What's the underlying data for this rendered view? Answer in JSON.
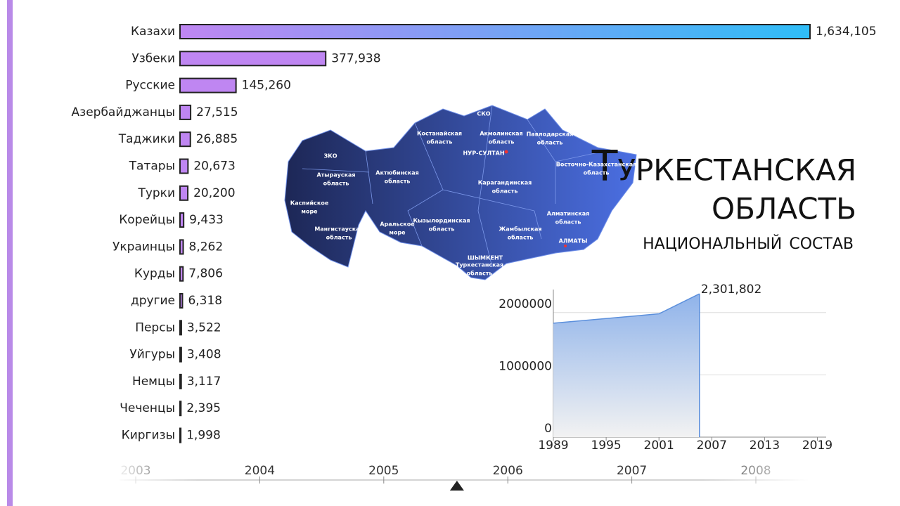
{
  "title_lines": [
    "Туркестанская",
    "область"
  ],
  "subtitle": "национальный состав",
  "chart_data": [
    {
      "type": "hbar",
      "categories": [
        "Казахи",
        "Узбеки",
        "Русские",
        "Азербайджанцы",
        "Таджики",
        "Татары",
        "Турки",
        "Корейцы",
        "Украинцы",
        "Курды",
        "другие",
        "Персы",
        "Уйгуры",
        "Немцы",
        "Чеченцы",
        "Киргизы"
      ],
      "values": [
        1634105,
        377938,
        145260,
        27515,
        26885,
        20673,
        20200,
        9433,
        8262,
        7806,
        6318,
        3522,
        3408,
        3117,
        2395,
        1998
      ],
      "value_labels": [
        "1,634,105",
        "377,938",
        "145,260",
        "27,515",
        "26,885",
        "20,673",
        "20,200",
        "9,433",
        "8,262",
        "7,806",
        "6,318",
        "3,522",
        "3,408",
        "3,117",
        "2,395",
        "1,998"
      ],
      "color": "#bf86f2",
      "gradient_color": "#2fbdf7"
    },
    {
      "type": "area",
      "x": [
        1989,
        2001,
        2005.6
      ],
      "values": [
        1830000,
        1980000,
        2301802
      ],
      "value_labels": [
        null,
        null,
        "2,301,802"
      ],
      "color": "#5b8fdc",
      "xlim": [
        1989,
        2020
      ],
      "xticks": [
        1989,
        1995,
        2001,
        2007,
        2013,
        2019
      ],
      "ylim": [
        0,
        2370000
      ],
      "yticks": [
        0,
        1000000,
        2000000
      ],
      "grid": true
    }
  ],
  "timeline": {
    "ticks": [
      2003,
      2004,
      2005,
      2006,
      2007,
      2008
    ],
    "current": 2005.59
  },
  "map": {
    "regions": [
      [
        "ЗКО"
      ],
      [
        "Атырауская",
        "область"
      ],
      [
        "Каспийское",
        "море"
      ],
      [
        "Мангистауская",
        "область"
      ],
      [
        "Актюбинская",
        "область"
      ],
      [
        "Костанайская",
        "область"
      ],
      [
        "СКО"
      ],
      [
        "Акмолинская",
        "область"
      ],
      [
        "НУР-СУЛТАН"
      ],
      [
        "Павлодарская",
        "область"
      ],
      [
        "Восточно-Казахстанская",
        "область"
      ],
      [
        "Карагандинская",
        "область"
      ],
      [
        "Аральское",
        "море"
      ],
      [
        "Кызылординская",
        "область"
      ],
      [
        "Жамбылская",
        "область"
      ],
      [
        "Алматинская",
        "область"
      ],
      [
        "АЛМАТЫ"
      ],
      [
        "ШЫМКЕНТ"
      ],
      [
        "Туркестанская",
        "область"
      ]
    ]
  }
}
